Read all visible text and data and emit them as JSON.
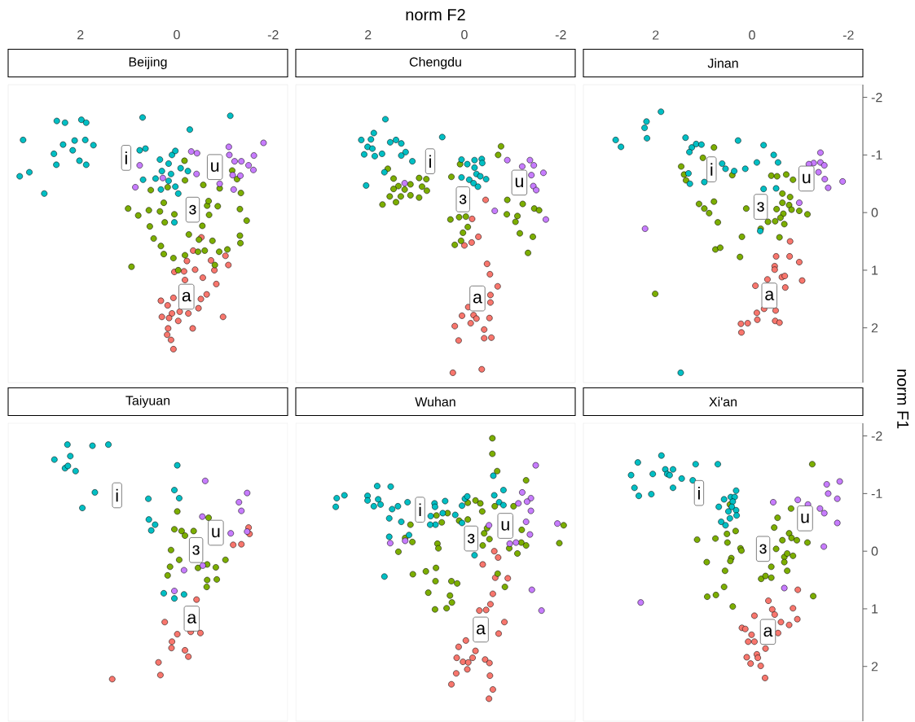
{
  "chart_data": [
    {
      "type": "scatter",
      "title": "Beijing",
      "xlim": [
        3.5,
        -2.3
      ],
      "ylim": [
        2.95,
        -2.22
      ],
      "xticks": [
        2,
        0,
        -2
      ],
      "tick_labels": "x",
      "marker": "circle",
      "series": [
        {
          "color": "#f8766d",
          "x": [
            -0.51,
            -0.34,
            -1.01,
            -0.71,
            -0.21,
            -1.07,
            -0.78,
            0.05,
            -0.15,
            -0.38,
            -0.54,
            -0.17,
            -0.82,
            -0.62,
            -0.5,
            0.33,
            0.07,
            0.19,
            -0.06,
            0.1,
            0.31,
            0.16,
            -0.03,
            -0.24,
            -0.45,
            -0.96,
            -0.33,
            0.18,
            0.2,
            0.12,
            0.07
          ],
          "values": [
            0.43,
            0.66,
            0.75,
            0.83,
            0.84,
            0.91,
            1.0,
            1.03,
            1.02,
            0.99,
            1.13,
            1.17,
            1.24,
            1.42,
            1.5,
            1.53,
            1.48,
            1.61,
            1.72,
            1.75,
            1.81,
            1.83,
            1.88,
            1.75,
            1.66,
            1.81,
            2.01,
            2.01,
            2.12,
            2.21,
            2.37
          ]
        },
        {
          "color": "#7cae00",
          "x": [
            -0.16,
            -1.15,
            -1.25,
            -1.33,
            -0.17,
            -0.55,
            -0.89,
            0.19,
            0.54,
            1.01,
            0.8,
            0.58,
            0.35,
            0.27,
            0.25,
            0.56,
            0.05,
            -0.63,
            -0.67,
            -0.85,
            -1.31,
            -1.45,
            -0.53,
            -0.25,
            -0.46,
            -0.74,
            -1.31,
            -1.32,
            0.48,
            0.33,
            0.27,
            0.07,
            -0.17,
            -0.44,
            -0.58,
            -0.88,
            -1.05,
            -0.79,
            0.94,
            -0.03,
            -0.66
          ],
          "values": [
            -0.9,
            -0.73,
            -0.58,
            -0.34,
            -0.56,
            -0.48,
            -0.42,
            -0.44,
            -0.39,
            -0.07,
            0.05,
            -0.04,
            -0.02,
            -0.17,
            0.17,
            0.24,
            0.03,
            -0.12,
            0.04,
            -0.11,
            -0.06,
            0.14,
            0.23,
            0.38,
            0.47,
            0.49,
            0.4,
            0.53,
            0.45,
            0.58,
            0.72,
            0.79,
            0.74,
            0.68,
            0.66,
            0.68,
            0.64,
            0.91,
            0.94,
            1.0,
            -0.2
          ]
        },
        {
          "color": "#00bfc4",
          "x": [
            2.49,
            2.32,
            1.98,
            1.88,
            3.19,
            2.36,
            2.12,
            1.9,
            1.73,
            2.55,
            2.16,
            2.02,
            2.5,
            1.88,
            3.26,
            3.06,
            2.75,
            0.71,
            -1.11,
            -0.27,
            0.77,
            0.65,
            0.35,
            0.1,
            0.03,
            0.17,
            -0.08,
            0.31,
            0.12,
            0.7,
            0.44,
            0.17,
            0.03,
            -0.03,
            -0.23,
            0.33,
            0.05
          ],
          "values": [
            -1.59,
            -1.56,
            -1.61,
            -1.56,
            -1.26,
            -1.18,
            -1.25,
            -1.26,
            -1.17,
            -1.02,
            -1.08,
            -0.9,
            -0.83,
            -0.83,
            -0.63,
            -0.7,
            -0.33,
            -1.65,
            -1.68,
            -1.44,
            -1.08,
            -1.11,
            -0.92,
            -1.0,
            -1.07,
            -0.85,
            -0.77,
            -0.72,
            -0.67,
            -0.57,
            -0.59,
            -0.55,
            -0.45,
            -0.33,
            -0.72,
            -0.4,
            0.17
          ]
        },
        {
          "color": "#c77cff",
          "x": [
            -0.3,
            -0.42,
            -1.08,
            -1.8,
            -1.09,
            -1.6,
            -1.2,
            -1.34,
            -1.49,
            -1.59,
            -1.16,
            -1.32,
            -1.18,
            -0.41,
            0.77,
            0.86,
            0.29,
            -0.89
          ],
          "values": [
            -1.06,
            -1.03,
            -1.14,
            -1.21,
            -1.0,
            -0.99,
            -0.89,
            -0.89,
            -0.82,
            -0.74,
            -0.65,
            -0.64,
            -0.4,
            -0.67,
            -0.82,
            -0.44,
            -0.6,
            -0.5
          ]
        }
      ],
      "annotations": [
        {
          "text": "i",
          "x": 1.05,
          "y": -0.95
        },
        {
          "text": "u",
          "x": -0.79,
          "y": -0.79
        },
        {
          "text": "ɜ",
          "x": -0.33,
          "y": -0.05
        },
        {
          "text": "a",
          "x": -0.2,
          "y": 1.46
        }
      ]
    },
    {
      "type": "scatter",
      "title": "Chengdu",
      "xlabel": "norm F2",
      "xlim": [
        3.5,
        -2.3
      ],
      "ylim": [
        2.95,
        -2.22
      ],
      "xticks": [
        2,
        0,
        -2
      ],
      "tick_labels": "x",
      "marker": "circle",
      "series": [
        {
          "color": "#f8766d",
          "x": [
            -0.44,
            -0.16,
            -0.29,
            -0.15,
            0.0,
            -0.47,
            -0.53,
            -0.69,
            -0.54,
            -0.54,
            -0.08,
            0.05,
            -0.19,
            -0.25,
            -0.52,
            -0.13,
            0.2,
            -0.41,
            -0.41,
            -0.56,
            0.12,
            0.24,
            -0.36
          ],
          "values": [
            -0.22,
            0.11,
            0.42,
            0.52,
            0.57,
            0.89,
            1.07,
            1.28,
            1.43,
            1.56,
            1.64,
            1.79,
            1.78,
            1.84,
            1.83,
            1.92,
            1.97,
            2.03,
            2.18,
            2.17,
            2.22,
            2.78,
            2.72
          ]
        },
        {
          "color": "#7cae00",
          "x": [
            1.59,
            1.47,
            1.37,
            1.47,
            1.24,
            1.12,
            0.94,
            0.79,
            0.88,
            0.78,
            1.12,
            1.32,
            1.55,
            1.42,
            1.7,
            0.94,
            0.09,
            0.27,
            -0.76,
            -0.7,
            -0.89,
            -1.21,
            -1.45,
            -1.55,
            -0.88,
            -1.1,
            -1.06,
            -1.15,
            -1.42,
            -1.32,
            0.29,
            0.11,
            -0.03,
            -0.07,
            0.03,
            0.07,
            0.2
          ],
          "values": [
            -0.76,
            -0.59,
            -0.46,
            -0.41,
            -0.4,
            -0.49,
            -0.6,
            -0.58,
            -0.45,
            -0.38,
            -0.3,
            -0.28,
            -0.28,
            -0.18,
            -0.14,
            -0.26,
            -0.84,
            -0.62,
            -1.15,
            -1.0,
            -0.22,
            -0.15,
            -0.07,
            -0.04,
            0.03,
            0.06,
            0.16,
            0.36,
            0.42,
            0.7,
            0.12,
            0.08,
            0.07,
            0.25,
            0.35,
            0.49,
            0.56
          ]
        },
        {
          "color": "#00bfc4",
          "x": [
            1.64,
            1.88,
            2.14,
            1.94,
            2.01,
            1.91,
            2.08,
            1.86,
            1.71,
            1.54,
            1.42,
            1.31,
            1.22,
            1.31,
            1.08,
            1.66,
            2.04,
            0.46,
            0.06,
            -0.06,
            -0.21,
            -0.36,
            -0.37,
            -0.21,
            -0.25,
            -0.33,
            -0.45,
            -0.1,
            -0.19,
            -0.28,
            0.06
          ],
          "values": [
            -1.62,
            -1.38,
            -1.26,
            -1.27,
            -1.14,
            -1.11,
            -1.01,
            -0.98,
            -1.02,
            -1.22,
            -1.26,
            -1.2,
            -1.05,
            -0.99,
            -0.89,
            -0.7,
            -0.47,
            -1.31,
            -0.92,
            -0.84,
            -0.91,
            -0.93,
            -0.86,
            -0.78,
            -0.67,
            -0.63,
            -0.58,
            -0.57,
            -0.51,
            -0.45,
            -0.61
          ]
        },
        {
          "color": "#c77cff",
          "x": [
            1.24,
            -0.89,
            -1.2,
            -1.36,
            -1.44,
            -1.64,
            -1.39,
            -1.43,
            -1.49,
            -0.63,
            -1.69
          ],
          "values": [
            -0.51,
            -0.91,
            -0.8,
            -0.91,
            -0.82,
            -0.69,
            -0.65,
            -0.46,
            -0.39,
            -0.03,
            0.12
          ]
        }
      ],
      "annotations": [
        {
          "text": "i",
          "x": 0.71,
          "y": -0.89
        },
        {
          "text": "ɜ",
          "x": 0.03,
          "y": -0.23
        },
        {
          "text": "u",
          "x": -1.14,
          "y": -0.52
        },
        {
          "text": "a",
          "x": -0.27,
          "y": 1.49
        }
      ]
    },
    {
      "type": "scatter",
      "title": "Jinan",
      "ylabel": "norm F1",
      "xlim": [
        3.5,
        -2.3
      ],
      "ylim": [
        2.95,
        -2.22
      ],
      "xticks": [
        2,
        0,
        -2
      ],
      "yticks": [
        -2,
        -1,
        0,
        1,
        2
      ],
      "marker": "circle",
      "series": [
        {
          "color": "#f8766d",
          "x": [
            -0.79,
            -0.5,
            -0.78,
            -0.98,
            -0.47,
            -0.47,
            -0.32,
            -0.62,
            -0.68,
            -1.04,
            -0.07,
            -0.69,
            -0.1,
            -0.25,
            -0.49,
            0.23,
            0.09,
            -0.11,
            -0.48,
            -0.57,
            0.22
          ],
          "values": [
            0.5,
            0.76,
            0.76,
            0.86,
            0.93,
            0.99,
            1.16,
            1.12,
            1.1,
            1.18,
            1.27,
            1.3,
            1.74,
            1.67,
            1.7,
            1.93,
            1.92,
            1.86,
            1.88,
            1.91,
            2.08
          ]
        },
        {
          "color": "#7cae00",
          "x": [
            0.79,
            1.47,
            1.02,
            1.41,
            1.37,
            0.41,
            1.1,
            0.99,
            0.89,
            0.79,
            0.71,
            0.76,
            0.66,
            0.25,
            0.21,
            2.01,
            -0.4,
            -0.52,
            -0.71,
            -0.85,
            -0.63,
            -0.79,
            -0.63,
            -0.77,
            -0.82,
            -0.98,
            -1.15,
            0.12,
            -0.51,
            -0.65,
            -0.59,
            -0.48,
            -0.67,
            -0.33,
            -0.18,
            -0.57
          ],
          "values": [
            -1.13,
            -0.8,
            -0.95,
            -0.66,
            -0.56,
            -0.65,
            -0.15,
            -0.07,
            0.01,
            -0.19,
            0.17,
            0.64,
            0.61,
            0.77,
            0.42,
            1.41,
            -0.64,
            -0.63,
            -0.66,
            -0.57,
            -0.33,
            -0.27,
            -0.17,
            -0.13,
            -0.05,
            -0.03,
            0.03,
            -0.07,
            -0.06,
            0.02,
            0.09,
            0.15,
            0.2,
            0.16,
            0.28,
            0.43
          ]
        },
        {
          "color": "#00bfc4",
          "x": [
            1.89,
            2.19,
            2.23,
            2.18,
            2.83,
            2.72,
            1.38,
            1.25,
            1.16,
            1.05,
            1.3,
            0.62,
            0.55,
            0.37,
            1.32,
            1.29,
            0.99,
            0.29,
            0.14,
            -0.1,
            -0.24,
            -0.45,
            -0.54,
            -0.24,
            -0.5,
            -0.17,
            1.48
          ],
          "values": [
            -1.75,
            -1.58,
            -1.47,
            -1.29,
            -1.26,
            -1.14,
            -1.3,
            -1.13,
            -1.19,
            -1.18,
            -1.05,
            -0.85,
            -0.76,
            -0.72,
            -0.68,
            -0.5,
            -0.53,
            -1.25,
            -0.76,
            -0.87,
            -1.17,
            -1.0,
            -0.87,
            -0.41,
            -0.42,
            0.32,
            2.78
          ]
        },
        {
          "color": "#c77cff",
          "x": [
            -1.42,
            -1.28,
            -1.42,
            -1.5,
            -1.38,
            -1.51,
            -1.88,
            -1.58,
            -0.98,
            2.22,
            -1.18
          ],
          "values": [
            -1.04,
            -0.86,
            -0.87,
            -0.82,
            -0.7,
            -0.58,
            -0.54,
            -0.43,
            -0.17,
            0.28,
            -0.84
          ]
        }
      ],
      "annotations": [
        {
          "text": "i",
          "x": 0.84,
          "y": -0.75
        },
        {
          "text": "u",
          "x": -1.13,
          "y": -0.59
        },
        {
          "text": "ɜ",
          "x": -0.18,
          "y": -0.1
        },
        {
          "text": "a",
          "x": -0.36,
          "y": 1.44
        }
      ]
    },
    {
      "type": "scatter",
      "title": "Taiyuan",
      "xlim": [
        3.5,
        -2.3
      ],
      "ylim": [
        2.95,
        -2.22
      ],
      "tick_labels": false,
      "marker": "circle",
      "series": [
        {
          "color": "#f8766d",
          "x": [
            -1.49,
            -1.51,
            -1.17,
            -1.34,
            -0.41,
            0.25,
            -0.01,
            -0.29,
            -0.49,
            0.1,
            0.11,
            -0.17,
            -0.24,
            0.38,
            0.34,
            1.34
          ],
          "values": [
            -0.41,
            -0.3,
            -0.11,
            -0.12,
            0.84,
            1.23,
            1.44,
            1.4,
            1.42,
            1.57,
            1.68,
            1.72,
            1.83,
            1.93,
            2.15,
            2.22
          ]
        },
        {
          "color": "#7cae00",
          "x": [
            -0.01,
            0.05,
            -0.1,
            -0.35,
            -0.17,
            0.12,
            -0.05,
            0.14,
            0.19,
            -0.44,
            -0.63,
            -0.81,
            -1.01,
            -0.63,
            -0.83,
            -0.62,
            -0.66
          ],
          "values": [
            -0.69,
            -0.38,
            -0.35,
            -0.35,
            -0.27,
            -0.02,
            0.15,
            0.27,
            0.42,
            0.29,
            0.23,
            0.28,
            0.15,
            0.5,
            0.49,
            0.62,
            -0.58
          ]
        },
        {
          "color": "#00bfc4",
          "x": [
            2.27,
            1.75,
            1.42,
            2.54,
            2.21,
            2.32,
            2.26,
            2.1,
            1.7,
            1.96,
            -0.01,
            0.05,
            -0.05,
            0.59,
            0.58,
            0.45,
            0.53,
            0.27,
            0.05,
            -0.15
          ],
          "values": [
            -1.85,
            -1.83,
            -1.85,
            -1.59,
            -1.65,
            -1.44,
            -1.48,
            -1.39,
            -1.02,
            -0.75,
            -1.49,
            -1.06,
            -0.92,
            -0.91,
            -0.55,
            -0.46,
            -0.36,
            0.73,
            0.82,
            0.75
          ]
        },
        {
          "color": "#c77cff",
          "x": [
            -0.59,
            -1.46,
            -1.29,
            -1.34,
            -0.53,
            -1.12,
            -1.46,
            -0.54,
            -0.15,
            0.05
          ],
          "values": [
            -1.22,
            -1.01,
            -0.85,
            -0.7,
            -0.6,
            -0.31,
            -0.34,
            0.25,
            0.33,
            0.69
          ]
        }
      ],
      "annotations": [
        {
          "text": "i",
          "x": 1.24,
          "y": -0.97
        },
        {
          "text": "u",
          "x": -0.81,
          "y": -0.32
        },
        {
          "text": "ɜ",
          "x": -0.4,
          "y": -0.02
        },
        {
          "text": "a",
          "x": -0.31,
          "y": 1.17
        }
      ]
    },
    {
      "type": "scatter",
      "title": "Wuhan",
      "xlim": [
        3.5,
        -2.3
      ],
      "ylim": [
        2.95,
        -2.22
      ],
      "tick_labels": false,
      "marker": "circle",
      "series": [
        {
          "color": "#f8766d",
          "x": [
            -0.62,
            -0.7,
            -0.38,
            -0.64,
            -0.9,
            -0.59,
            -0.54,
            -0.31,
            -0.45,
            -0.83,
            -0.71,
            -0.03,
            0.12,
            -0.23,
            0.16,
            0.03,
            -0.08,
            -0.17,
            -0.43,
            -0.52,
            -0.06,
            0.17,
            -0.53,
            0.27,
            -0.59,
            -0.51
          ],
          "values": [
            0.0,
            0.11,
            0.23,
            0.46,
            0.47,
            0.74,
            0.92,
            1.03,
            1.02,
            1.23,
            1.43,
            1.55,
            1.66,
            1.73,
            1.85,
            1.92,
            1.93,
            1.85,
            1.88,
            1.94,
            2.05,
            2.12,
            2.16,
            2.31,
            2.4,
            2.56
          ]
        },
        {
          "color": "#7cae00",
          "x": [
            -0.58,
            -0.58,
            -0.68,
            -1.28,
            -0.23,
            -0.33,
            -0.37,
            -0.63,
            -1.02,
            -0.07,
            -0.07,
            0.11,
            0.35,
            0.58,
            0.47,
            1.12,
            1.08,
            1.23,
            1.37,
            0.56,
            0.54,
            -0.41,
            -0.52,
            -0.47,
            -0.38,
            -0.93,
            -1.1,
            -1.19,
            -1.28,
            -1.18,
            -1.97,
            -2.06,
            1.07,
            0.8,
            0.59,
            0.6,
            0.27,
            0.15,
            0.75,
            0.3,
            0.26,
            0.61,
            0.37,
            -0.69,
            -0.84
          ],
          "values": [
            -1.96,
            -1.69,
            -1.39,
            -1.23,
            -0.88,
            -0.83,
            -0.69,
            -0.78,
            -0.78,
            -0.84,
            -0.55,
            -0.53,
            -0.66,
            -0.62,
            -0.5,
            -0.46,
            -0.16,
            -0.23,
            0.01,
            -0.13,
            -0.05,
            -0.31,
            -0.21,
            -0.4,
            -0.1,
            -0.05,
            0.04,
            -0.37,
            -0.1,
            -0.15,
            -0.14,
            -0.45,
            0.4,
            0.35,
            0.29,
            0.52,
            0.52,
            0.56,
            0.72,
            0.77,
            0.89,
            1.01,
            0.99,
            0.39,
            0.62
          ]
        },
        {
          "color": "#00bfc4",
          "x": [
            2.67,
            2.65,
            2.49,
            2.01,
            2.01,
            1.88,
            1.81,
            1.79,
            1.74,
            1.53,
            1.5,
            1.38,
            1.56,
            1.31,
            1.56,
            1.15,
            1.66,
            1.18,
            0.62,
            0.61,
            0.7,
            0.6,
            0.71,
            0.45,
            0.4,
            0.19,
            0.05,
            -0.01,
            -0.06,
            0.05,
            -0.21,
            -0.6,
            -0.62,
            -0.81,
            -0.72,
            -0.81
          ],
          "values": [
            -0.77,
            -0.92,
            -0.97,
            -0.96,
            -0.88,
            -0.78,
            -1.13,
            -0.9,
            -0.81,
            -1.12,
            -0.73,
            -0.78,
            -0.57,
            -0.51,
            -0.25,
            -0.28,
            0.44,
            -0.85,
            -0.83,
            -0.77,
            -0.61,
            -0.46,
            -0.46,
            -0.66,
            -0.87,
            -0.63,
            -0.79,
            -0.91,
            -0.95,
            -0.49,
            0.07,
            -1.31,
            -0.97,
            -1.06,
            -0.85,
            -0.8
          ]
        },
        {
          "color": "#c77cff",
          "x": [
            -1.48,
            -1.2,
            -1.38,
            -1.3,
            -1.12,
            -1.38,
            -1.28,
            -1.36,
            -1.07,
            -0.94,
            -0.51,
            -1.93,
            1.54,
            1.23,
            -1.4,
            -1.6
          ],
          "values": [
            -1.49,
            -1.02,
            -0.92,
            -0.86,
            -0.83,
            -0.7,
            -0.51,
            -0.29,
            -0.15,
            -0.13,
            -0.45,
            -0.48,
            -0.14,
            -0.18,
            0.67,
            1.03
          ]
        }
      ],
      "annotations": [
        {
          "text": "i",
          "x": 0.92,
          "y": -0.72
        },
        {
          "text": "ɜ",
          "x": -0.14,
          "y": -0.22
        },
        {
          "text": "u",
          "x": -0.85,
          "y": -0.44
        },
        {
          "text": "a",
          "x": -0.34,
          "y": 1.36
        }
      ]
    },
    {
      "type": "scatter",
      "title": "Xi'an",
      "xlim": [
        3.5,
        -2.3
      ],
      "ylim": [
        2.95,
        -2.22
      ],
      "yticks": [
        -2,
        -1,
        0,
        1,
        2
      ],
      "tick_labels": "y",
      "marker": "circle",
      "series": [
        {
          "color": "#f8766d",
          "x": [
            -0.95,
            -0.34,
            -0.42,
            -0.85,
            -0.47,
            -0.05,
            -0.94,
            -0.6,
            -0.77,
            0.21,
            0.14,
            0.01,
            -0.54,
            0.08,
            -0.05,
            -0.28,
            -0.1,
            0.11,
            -0.12,
            0.03,
            -0.18,
            -0.27
          ],
          "values": [
            0.67,
            0.86,
            1.01,
            0.99,
            1.1,
            1.12,
            1.18,
            1.23,
            1.28,
            1.33,
            1.35,
            1.45,
            1.42,
            1.57,
            1.57,
            1.69,
            1.79,
            1.84,
            1.85,
            1.95,
            1.99,
            2.2
          ]
        },
        {
          "color": "#7cae00",
          "x": [
            -1.25,
            0.46,
            -0.81,
            -0.53,
            -0.46,
            0.34,
            0.52,
            1.14,
            0.76,
            0.51,
            0.24,
            0.22,
            0.43,
            0.45,
            0.94,
            0.56,
            0.58,
            0.75,
            0.93,
            0.4,
            -0.19,
            -0.28,
            -0.4,
            -0.4,
            -0.5,
            -0.63,
            -0.77,
            -0.82,
            -0.67,
            -0.67,
            -0.73,
            -0.85,
            -0.73,
            -1.15,
            -0.93,
            -1.27
          ],
          "values": [
            -1.51,
            -0.81,
            -0.74,
            -0.58,
            -0.41,
            -0.35,
            -0.3,
            -0.2,
            -0.22,
            -0.15,
            -0.05,
            -0.01,
            0.12,
            0.17,
            0.19,
            0.34,
            0.62,
            0.76,
            0.79,
            0.96,
            0.48,
            0.43,
            0.46,
            0.27,
            -0.04,
            -0.19,
            -0.31,
            -0.23,
            0.1,
            0.19,
            0.04,
            0.08,
            0.34,
            -0.15,
            -0.19,
            0.78
          ]
        },
        {
          "color": "#00bfc4",
          "x": [
            1.88,
            2.37,
            2.51,
            2.06,
            1.8,
            1.64,
            1.76,
            1.71,
            1.46,
            1.17,
            0.71,
            1.23,
            2.44,
            2.35,
            2.09,
            1.64,
            0.33,
            0.58,
            0.44,
            0.36,
            0.4,
            0.69,
            0.42,
            0.33,
            0.49,
            0.32,
            0.46,
            0.64,
            0.55
          ],
          "values": [
            -1.66,
            -1.54,
            -1.32,
            -1.34,
            -1.42,
            -1.42,
            -1.34,
            -1.32,
            -1.26,
            -1.51,
            -1.51,
            -1.23,
            -1.1,
            -0.96,
            -0.99,
            -1.1,
            -1.05,
            -0.9,
            -0.94,
            -0.94,
            -0.86,
            -0.77,
            -0.77,
            -0.71,
            -0.69,
            -0.62,
            -0.57,
            -0.51,
            -0.45
          ]
        },
        {
          "color": "#c77cff",
          "x": [
            -0.44,
            -0.95,
            -1.16,
            -1.41,
            -1.5,
            -1.55,
            -1.82,
            -1.58,
            -1.77,
            -1.77,
            -1.49,
            -0.67,
            2.31
          ],
          "values": [
            -0.85,
            -0.89,
            -0.81,
            -0.74,
            -0.66,
            -1.16,
            -1.21,
            -1.0,
            -0.91,
            -0.49,
            -0.08,
            0.64,
            0.89
          ]
        }
      ],
      "annotations": [
        {
          "text": "i",
          "x": 1.1,
          "y": -1.01
        },
        {
          "text": "u",
          "x": -1.1,
          "y": -0.57
        },
        {
          "text": "ɜ",
          "x": -0.23,
          "y": -0.04
        },
        {
          "text": "a",
          "x": -0.33,
          "y": 1.4
        }
      ]
    }
  ]
}
